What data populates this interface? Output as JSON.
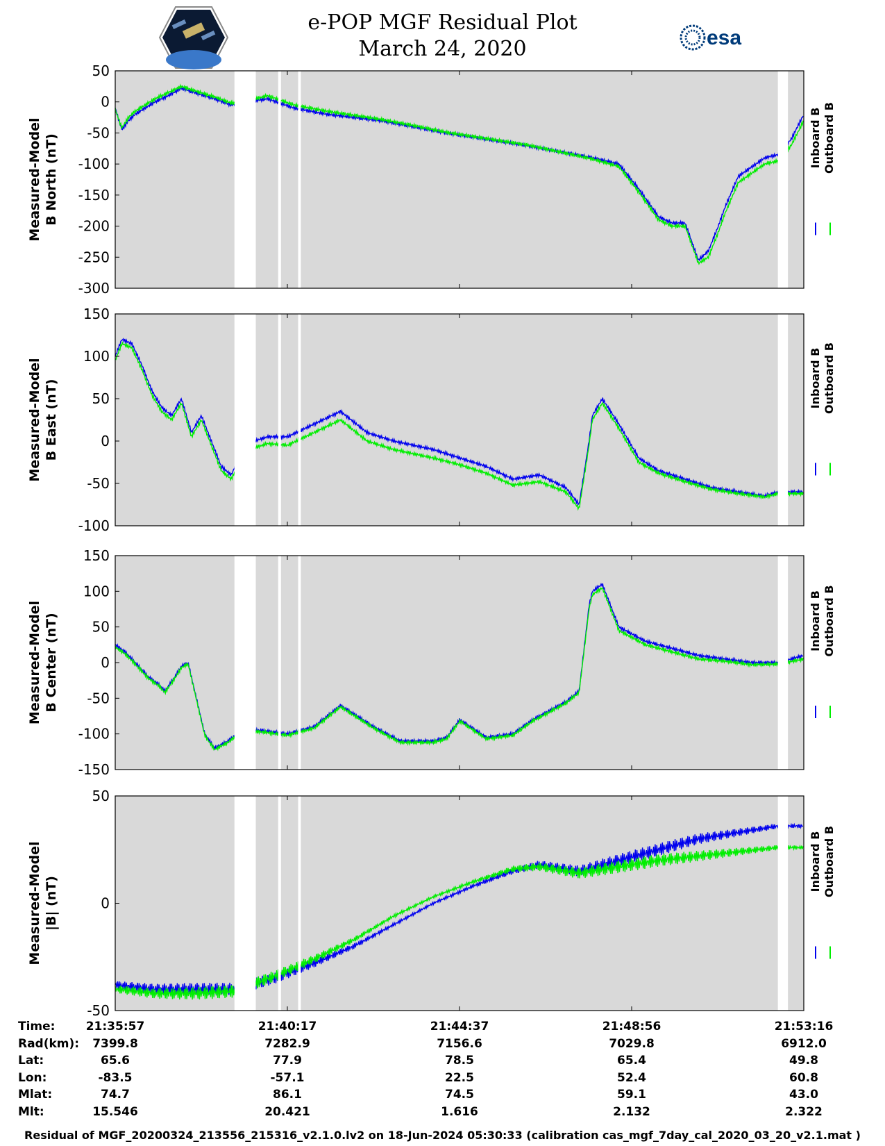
{
  "title": {
    "line1": "e-POP MGF Residual Plot",
    "line2": "March 24, 2020"
  },
  "logos": {
    "left": "cassiope-mission-logo",
    "right_text": "esa"
  },
  "colors": {
    "inboard": "#0000ee",
    "outboard": "#00ee00",
    "panel_bg": "#d9d9d9"
  },
  "legend": {
    "inboard": "Inboard B",
    "outboard": "Outboard B"
  },
  "chart_data": [
    {
      "type": "line",
      "ylabel_line1": "Measured-Model",
      "ylabel_line2": "B North (nT)",
      "ylim": [
        -300,
        50
      ],
      "yticks": [
        50,
        0,
        -50,
        -100,
        -150,
        -200,
        -250,
        -300
      ],
      "x_seconds_range": [
        0,
        1039
      ],
      "data_gaps": [
        [
          180,
          212
        ],
        [
          246,
          250
        ],
        [
          276,
          280
        ],
        [
          1000,
          1015
        ]
      ],
      "series": [
        {
          "name": "Inboard B",
          "x": [
            0,
            10,
            20,
            30,
            45,
            60,
            80,
            100,
            120,
            150,
            175,
            200,
            230,
            270,
            320,
            400,
            450,
            500,
            560,
            620,
            660,
            720,
            760,
            790,
            820,
            840,
            860,
            880,
            895,
            910,
            920,
            940,
            980,
            1000,
            1020,
            1039
          ],
          "y": [
            -10,
            -45,
            -30,
            -20,
            -10,
            0,
            10,
            22,
            15,
            5,
            -5,
            0,
            5,
            -10,
            -20,
            -30,
            -40,
            -50,
            -60,
            -70,
            -78,
            -90,
            -100,
            -140,
            -185,
            -195,
            -195,
            -255,
            -240,
            -200,
            -170,
            -120,
            -90,
            -85,
            -60,
            -20
          ]
        },
        {
          "name": "Outboard B",
          "x": [
            0,
            10,
            20,
            30,
            45,
            60,
            80,
            100,
            120,
            150,
            175,
            200,
            230,
            270,
            320,
            400,
            450,
            500,
            560,
            620,
            660,
            720,
            760,
            790,
            820,
            840,
            860,
            880,
            895,
            910,
            920,
            940,
            980,
            1000,
            1020,
            1039
          ],
          "y": [
            -12,
            -42,
            -25,
            -15,
            -5,
            5,
            15,
            25,
            18,
            8,
            -2,
            2,
            10,
            -5,
            -15,
            -28,
            -38,
            -49,
            -59,
            -69,
            -78,
            -92,
            -104,
            -145,
            -190,
            -200,
            -200,
            -260,
            -250,
            -210,
            -180,
            -130,
            -100,
            -95,
            -70,
            -30
          ]
        }
      ]
    },
    {
      "type": "line",
      "ylabel_line1": "Measured-Model",
      "ylabel_line2": "B East (nT)",
      "ylim": [
        -100,
        150
      ],
      "yticks": [
        150,
        100,
        50,
        0,
        -50,
        -100
      ],
      "x_seconds_range": [
        0,
        1039
      ],
      "data_gaps": [
        [
          180,
          212
        ],
        [
          246,
          250
        ],
        [
          276,
          280
        ],
        [
          1000,
          1015
        ]
      ],
      "series": [
        {
          "name": "Inboard B",
          "x": [
            0,
            10,
            25,
            40,
            55,
            70,
            85,
            100,
            115,
            130,
            145,
            160,
            175,
            190,
            210,
            230,
            260,
            300,
            340,
            380,
            420,
            450,
            480,
            520,
            560,
            600,
            640,
            680,
            700,
            715,
            720,
            735,
            760,
            790,
            820,
            860,
            900,
            940,
            980,
            1000,
            1039
          ],
          "y": [
            100,
            120,
            115,
            90,
            60,
            40,
            30,
            50,
            10,
            30,
            0,
            -30,
            -40,
            -15,
            0,
            5,
            5,
            20,
            35,
            10,
            0,
            -5,
            -10,
            -20,
            -30,
            -45,
            -40,
            -55,
            -75,
            0,
            30,
            50,
            20,
            -20,
            -35,
            -45,
            -55,
            -60,
            -65,
            -60,
            -60
          ]
        },
        {
          "name": "Outboard B",
          "x": [
            0,
            10,
            25,
            40,
            55,
            70,
            85,
            100,
            115,
            130,
            145,
            160,
            175,
            190,
            210,
            230,
            260,
            300,
            340,
            380,
            420,
            450,
            480,
            520,
            560,
            600,
            640,
            680,
            700,
            715,
            720,
            735,
            760,
            790,
            820,
            860,
            900,
            940,
            980,
            1000,
            1039
          ],
          "y": [
            95,
            115,
            110,
            85,
            55,
            35,
            25,
            45,
            5,
            25,
            -5,
            -35,
            -45,
            -22,
            -8,
            -3,
            -5,
            10,
            25,
            0,
            -10,
            -15,
            -20,
            -28,
            -38,
            -52,
            -48,
            -60,
            -80,
            -5,
            25,
            45,
            15,
            -25,
            -38,
            -48,
            -57,
            -62,
            -66,
            -62,
            -62
          ]
        }
      ]
    },
    {
      "type": "line",
      "ylabel_line1": "Measured-Model",
      "ylabel_line2": "B Center (nT)",
      "ylim": [
        -150,
        150
      ],
      "yticks": [
        150,
        100,
        50,
        0,
        -50,
        -100,
        -150
      ],
      "x_seconds_range": [
        0,
        1039
      ],
      "data_gaps": [
        [
          180,
          212
        ],
        [
          246,
          250
        ],
        [
          276,
          280
        ],
        [
          1000,
          1015
        ]
      ],
      "series": [
        {
          "name": "Inboard B",
          "x": [
            0,
            15,
            30,
            50,
            65,
            75,
            90,
            100,
            110,
            120,
            135,
            150,
            170,
            190,
            220,
            260,
            300,
            340,
            390,
            430,
            480,
            500,
            520,
            560,
            600,
            630,
            660,
            680,
            700,
            715,
            720,
            735,
            760,
            800,
            840,
            880,
            920,
            960,
            1000,
            1039
          ],
          "y": [
            25,
            15,
            0,
            -20,
            -30,
            -40,
            -20,
            -5,
            0,
            -40,
            -100,
            -120,
            -110,
            -95,
            -95,
            -100,
            -90,
            -60,
            -90,
            -110,
            -110,
            -105,
            -80,
            -105,
            -100,
            -80,
            -65,
            -55,
            -40,
            80,
            100,
            110,
            50,
            30,
            20,
            10,
            5,
            0,
            0,
            10
          ]
        },
        {
          "name": "Outboard B",
          "x": [
            0,
            15,
            30,
            50,
            65,
            75,
            90,
            100,
            110,
            120,
            135,
            150,
            170,
            190,
            220,
            260,
            300,
            340,
            390,
            430,
            480,
            500,
            520,
            560,
            600,
            630,
            660,
            680,
            700,
            715,
            720,
            735,
            760,
            800,
            840,
            880,
            920,
            960,
            1000,
            1039
          ],
          "y": [
            22,
            12,
            -2,
            -22,
            -32,
            -42,
            -22,
            -7,
            -2,
            -42,
            -102,
            -122,
            -112,
            -97,
            -97,
            -102,
            -92,
            -62,
            -92,
            -112,
            -112,
            -107,
            -82,
            -107,
            -102,
            -82,
            -67,
            -57,
            -42,
            75,
            95,
            105,
            45,
            25,
            15,
            5,
            2,
            -3,
            -2,
            5
          ]
        }
      ]
    },
    {
      "type": "line",
      "ylabel_line1": "Measured-Model",
      "ylabel_line2": "|B| (nT)",
      "ylim": [
        -50,
        50
      ],
      "yticks": [
        50,
        0,
        -50
      ],
      "x_seconds_range": [
        0,
        1039
      ],
      "data_gaps": [
        [
          180,
          212
        ],
        [
          246,
          250
        ],
        [
          276,
          280
        ],
        [
          1000,
          1015
        ]
      ],
      "series": [
        {
          "name": "Inboard B",
          "x": [
            0,
            60,
            120,
            180,
            240,
            300,
            360,
            420,
            480,
            540,
            600,
            640,
            660,
            700,
            760,
            820,
            880,
            940,
            1000,
            1039
          ],
          "y": [
            -38,
            -40,
            -40,
            -40,
            -35,
            -28,
            -20,
            -10,
            0,
            8,
            15,
            18,
            17,
            15,
            20,
            25,
            30,
            33,
            36,
            36
          ]
        },
        {
          "name": "Outboard B",
          "x": [
            0,
            60,
            120,
            180,
            240,
            300,
            360,
            420,
            480,
            540,
            600,
            640,
            660,
            700,
            760,
            820,
            880,
            940,
            1000,
            1039
          ],
          "y": [
            -40,
            -42,
            -42,
            -41,
            -34,
            -26,
            -17,
            -6,
            3,
            10,
            16,
            17,
            16,
            14,
            17,
            20,
            22,
            24,
            26,
            26
          ]
        }
      ]
    }
  ],
  "info_table": {
    "labels": [
      "Time:",
      "Rad(km):",
      "Lat:",
      "Lon:",
      "Mlat:",
      "Mlt:"
    ],
    "columns": [
      {
        "time": "21:35:57",
        "rad": "7399.8",
        "lat": "65.6",
        "lon": "-83.5",
        "mlat": "74.7",
        "mlt": "15.546"
      },
      {
        "time": "21:40:17",
        "rad": "7282.9",
        "lat": "77.9",
        "lon": "-57.1",
        "mlat": "86.1",
        "mlt": "20.421"
      },
      {
        "time": "21:44:37",
        "rad": "7156.6",
        "lat": "78.5",
        "lon": "22.5",
        "mlat": "74.5",
        "mlt": "1.616"
      },
      {
        "time": "21:48:56",
        "rad": "7029.8",
        "lat": "65.4",
        "lon": "52.4",
        "mlat": "59.1",
        "mlt": "2.132"
      },
      {
        "time": "21:53:16",
        "rad": "6912.0",
        "lat": "49.8",
        "lon": "60.8",
        "mlat": "43.0",
        "mlt": "2.322"
      }
    ]
  },
  "footer": "Residual of MGF_20200324_213556_215316_v2.1.0.lv2 on 18-Jun-2024 05:30:33 (calibration cas_mgf_7day_cal_2020_03_20_v2.1.mat )"
}
